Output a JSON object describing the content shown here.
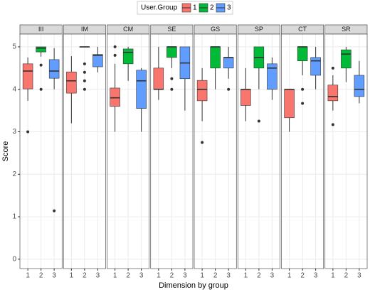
{
  "chart_data": {
    "type": "boxplot",
    "xlabel": "Dimension by group",
    "ylabel": "Score",
    "legend_title": "User.Group",
    "legend_position": "top",
    "groups": [
      "1",
      "2",
      "3"
    ],
    "colors": [
      "#F8766D",
      "#00BA38",
      "#619CFF"
    ],
    "ylim": [
      -0.22,
      5.3
    ],
    "yticks": [
      0,
      1,
      2,
      3,
      4,
      5
    ],
    "grid": true,
    "facets": [
      {
        "name": "III",
        "boxes": [
          {
            "whislo": 3.73,
            "q1": 4.01,
            "med": 4.43,
            "q3": 4.6,
            "whishi": 4.75,
            "fliers": [
              3.0
            ]
          },
          {
            "whislo": 4.77,
            "q1": 4.88,
            "med": 4.97,
            "q3": 5.0,
            "whishi": 5.0,
            "fliers": [
              4.57,
              4.0
            ]
          },
          {
            "whislo": 4.0,
            "q1": 4.26,
            "med": 4.43,
            "q3": 4.7,
            "whishi": 4.97,
            "fliers": [
              1.14
            ]
          }
        ]
      },
      {
        "name": "IM",
        "boxes": [
          {
            "whislo": 3.2,
            "q1": 3.91,
            "med": 4.2,
            "q3": 4.41,
            "whishi": 4.78,
            "fliers": []
          },
          {
            "whislo": 5.0,
            "q1": 5.0,
            "med": 5.0,
            "q3": 5.0,
            "whishi": 5.0,
            "fliers": [
              4.6,
              4.4,
              4.2,
              4.0
            ]
          },
          {
            "whislo": 4.4,
            "q1": 4.53,
            "med": 4.8,
            "q3": 4.82,
            "whishi": 5.0,
            "fliers": []
          }
        ]
      },
      {
        "name": "CM",
        "boxes": [
          {
            "whislo": 3.0,
            "q1": 3.6,
            "med": 3.8,
            "q3": 4.03,
            "whishi": 4.6,
            "fliers": [
              5.0,
              4.8
            ]
          },
          {
            "whislo": 4.2,
            "q1": 4.6,
            "med": 4.87,
            "q3": 4.95,
            "whishi": 5.0,
            "fliers": []
          },
          {
            "whislo": 3.0,
            "q1": 3.55,
            "med": 4.2,
            "q3": 4.45,
            "whishi": 4.5,
            "fliers": []
          }
        ]
      },
      {
        "name": "SE",
        "boxes": [
          {
            "whislo": 3.75,
            "q1": 4.0,
            "med": 4.0,
            "q3": 4.5,
            "whishi": 5.0,
            "fliers": []
          },
          {
            "whislo": 4.5,
            "q1": 4.75,
            "med": 5.0,
            "q3": 5.0,
            "whishi": 5.0,
            "fliers": [
              4.25,
              4.0
            ]
          },
          {
            "whislo": 3.5,
            "q1": 4.25,
            "med": 4.62,
            "q3": 5.0,
            "whishi": 5.0,
            "fliers": []
          }
        ]
      },
      {
        "name": "GS",
        "boxes": [
          {
            "whislo": 3.25,
            "q1": 3.73,
            "med": 4.0,
            "q3": 4.21,
            "whishi": 4.5,
            "fliers": [
              2.75
            ]
          },
          {
            "whislo": 4.0,
            "q1": 4.5,
            "med": 5.0,
            "q3": 5.0,
            "whishi": 5.0,
            "fliers": []
          },
          {
            "whislo": 4.25,
            "q1": 4.5,
            "med": 4.75,
            "q3": 4.75,
            "whishi": 5.0,
            "fliers": [
              4.0
            ]
          }
        ]
      },
      {
        "name": "SP",
        "boxes": [
          {
            "whislo": 3.25,
            "q1": 3.62,
            "med": 4.0,
            "q3": 4.0,
            "whishi": 4.5,
            "fliers": []
          },
          {
            "whislo": 4.0,
            "q1": 4.5,
            "med": 4.75,
            "q3": 5.0,
            "whishi": 5.0,
            "fliers": [
              3.25
            ]
          },
          {
            "whislo": 3.75,
            "q1": 4.0,
            "med": 4.5,
            "q3": 4.6,
            "whishi": 4.75,
            "fliers": []
          }
        ]
      },
      {
        "name": "CT",
        "boxes": [
          {
            "whislo": 3.0,
            "q1": 3.33,
            "med": 4.0,
            "q3": 4.0,
            "whishi": 4.0,
            "fliers": []
          },
          {
            "whislo": 4.33,
            "q1": 4.67,
            "med": 5.0,
            "q3": 5.0,
            "whishi": 5.0,
            "fliers": [
              4.0,
              3.67
            ]
          },
          {
            "whislo": 4.0,
            "q1": 4.33,
            "med": 4.67,
            "q3": 4.75,
            "whishi": 5.0,
            "fliers": []
          }
        ]
      },
      {
        "name": "SR",
        "boxes": [
          {
            "whislo": 3.5,
            "q1": 3.73,
            "med": 3.83,
            "q3": 4.1,
            "whishi": 4.33,
            "fliers": [
              4.5,
              3.17
            ]
          },
          {
            "whislo": 4.17,
            "q1": 4.5,
            "med": 4.83,
            "q3": 4.93,
            "whishi": 5.0,
            "fliers": []
          },
          {
            "whislo": 3.67,
            "q1": 3.83,
            "med": 4.0,
            "q3": 4.33,
            "whishi": 4.67,
            "fliers": []
          }
        ]
      }
    ]
  }
}
